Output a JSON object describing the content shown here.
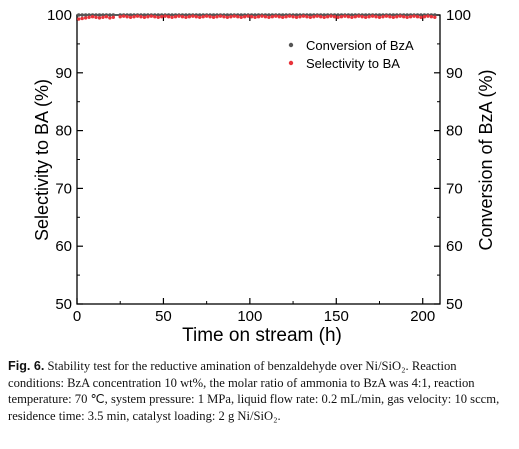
{
  "chart_data": {
    "type": "scatter",
    "xlabel": "Time on stream (h)",
    "ylabel_left": "Selectivity to BA (%)",
    "ylabel_right": "Conversion of BzA (%)",
    "xlim": [
      0,
      210
    ],
    "ylim": [
      50,
      100
    ],
    "xticks": [
      "0",
      "50",
      "100",
      "150",
      "200"
    ],
    "yticks": [
      "50",
      "60",
      "70",
      "80",
      "90",
      "100"
    ],
    "legend_position": "top-right",
    "series": [
      {
        "name": "Conversion of BzA",
        "color": "#555555",
        "x": [
          1,
          3,
          5,
          7,
          9,
          11,
          13,
          15,
          17,
          19,
          21,
          25,
          27,
          29,
          31,
          33,
          35,
          37,
          39,
          41,
          43,
          45,
          47,
          49,
          51,
          53,
          55,
          57,
          59,
          61,
          63,
          65,
          67,
          69,
          71,
          73,
          75,
          77,
          79,
          81,
          83,
          85,
          87,
          89,
          91,
          93,
          95,
          97,
          99,
          101,
          103,
          105,
          107,
          109,
          111,
          113,
          115,
          117,
          119,
          121,
          123,
          125,
          127,
          129,
          131,
          133,
          135,
          137,
          139,
          141,
          143,
          145,
          147,
          149,
          151,
          153,
          155,
          157,
          159,
          161,
          163,
          165,
          167,
          169,
          171,
          173,
          175,
          177,
          179,
          181,
          183,
          185,
          187,
          189,
          191,
          193,
          195,
          197,
          199,
          201,
          203,
          205,
          207
        ],
        "y": [
          100,
          100,
          100,
          100,
          100,
          100,
          100,
          100,
          100,
          100,
          100,
          100,
          100,
          100,
          100,
          100,
          100,
          100,
          100,
          100,
          100,
          100,
          100,
          100,
          100,
          100,
          100,
          100,
          100,
          100,
          100,
          100,
          100,
          100,
          100,
          100,
          100,
          100,
          100,
          100,
          100,
          100,
          100,
          100,
          100,
          100,
          100,
          100,
          100,
          100,
          100,
          100,
          100,
          100,
          100,
          100,
          100,
          100,
          100,
          100,
          100,
          100,
          100,
          100,
          100,
          100,
          100,
          100,
          100,
          100,
          100,
          100,
          100,
          100,
          100,
          100,
          100,
          100,
          100,
          100,
          100,
          100,
          100,
          100,
          100,
          100,
          100,
          100,
          100,
          100,
          100,
          100,
          100,
          100,
          100,
          100,
          100,
          100,
          100,
          100,
          100,
          100,
          100
        ]
      },
      {
        "name": "Selectivity to BA",
        "color": "#e8333a",
        "x": [
          1,
          3,
          5,
          7,
          9,
          11,
          13,
          15,
          17,
          19,
          21,
          25,
          27,
          29,
          31,
          33,
          35,
          37,
          39,
          41,
          43,
          45,
          47,
          49,
          51,
          53,
          55,
          57,
          59,
          61,
          63,
          65,
          67,
          69,
          71,
          73,
          75,
          77,
          79,
          81,
          83,
          85,
          87,
          89,
          91,
          93,
          95,
          97,
          99,
          101,
          103,
          105,
          107,
          109,
          111,
          113,
          115,
          117,
          119,
          121,
          123,
          125,
          127,
          129,
          131,
          133,
          135,
          137,
          139,
          141,
          143,
          145,
          147,
          149,
          151,
          153,
          155,
          157,
          159,
          161,
          163,
          165,
          167,
          169,
          171,
          173,
          175,
          177,
          179,
          181,
          183,
          185,
          187,
          189,
          191,
          193,
          195,
          197,
          199,
          201,
          203,
          205,
          207
        ],
        "y": [
          99.3,
          99.4,
          99.5,
          99.6,
          99.7,
          99.6,
          99.5,
          99.6,
          99.7,
          99.5,
          99.6,
          99.7,
          99.8,
          99.7,
          99.6,
          99.7,
          99.8,
          99.7,
          99.6,
          99.7,
          99.8,
          99.7,
          99.6,
          99.7,
          99.8,
          99.7,
          99.6,
          99.7,
          99.8,
          99.7,
          99.6,
          99.7,
          99.8,
          99.7,
          99.6,
          99.7,
          99.8,
          99.7,
          99.6,
          99.7,
          99.8,
          99.7,
          99.6,
          99.7,
          99.8,
          99.7,
          99.6,
          99.7,
          99.8,
          99.7,
          99.6,
          99.7,
          99.8,
          99.7,
          99.6,
          99.7,
          99.8,
          99.7,
          99.6,
          99.7,
          99.8,
          99.7,
          99.6,
          99.7,
          99.8,
          99.7,
          99.6,
          99.7,
          99.8,
          99.7,
          99.6,
          99.7,
          99.8,
          99.7,
          99.6,
          99.7,
          99.8,
          99.7,
          99.6,
          99.7,
          99.8,
          99.7,
          99.6,
          99.7,
          99.8,
          99.7,
          99.6,
          99.7,
          99.8,
          99.7,
          99.6,
          99.7,
          99.8,
          99.7,
          99.6,
          99.7,
          99.8,
          99.7,
          99.6,
          99.7,
          99.8,
          99.7,
          99.6
        ]
      }
    ]
  },
  "caption": {
    "label": "Fig. 6.",
    "text": "Stability test for the reductive amination of benzaldehyde over Ni/SiO₂. Reaction conditions: BzA concentration 10 wt%, the molar ratio of ammonia to BzA was 4:1, reaction temperature: 70 ℃, system pressure: 1 MPa, liquid flow rate: 0.2 mL/min, gas velocity: 10 sccm, residence time: 3.5 min, catalyst loading: 2 g Ni/SiO₂."
  }
}
